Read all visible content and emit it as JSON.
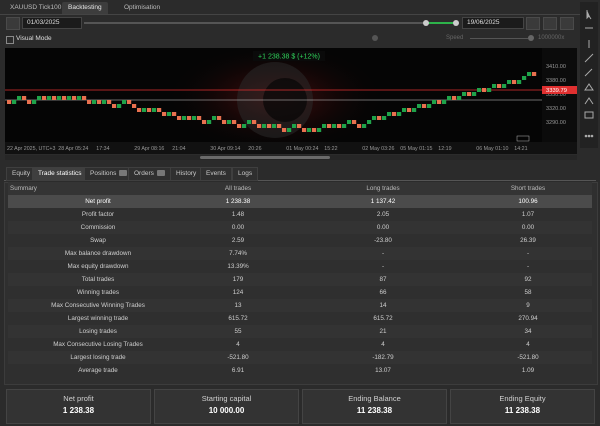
{
  "header": {
    "symbol": "XAUUSD",
    "timeframe": "Tick100",
    "tabs": [
      "Backtesting",
      "Optimisation"
    ],
    "start_date": "01/03/2025",
    "end_date": "19/06/2025"
  },
  "visual_mode": {
    "label": "Visual Mode",
    "speed_label": "Speed",
    "speed": "1000000x"
  },
  "chart": {
    "annotation": "+1 238.38 $ (+12%)",
    "price_labels": [
      "3410.00",
      "3380.00",
      "3350.00",
      "3320.00",
      "3290.00"
    ],
    "current_price": "3339.79",
    "time_labels": [
      "22 Apr 2025, UTC+3",
      "28 Apr 05:24",
      "17:34",
      "29 Apr 08:16",
      "21:04",
      "30 Apr 09:14",
      "20:26",
      "01 May 00:24",
      "15:22",
      "02 May 03:26",
      "05 May 01:15",
      "12:19",
      "06 May 01:10",
      "14:21"
    ]
  },
  "tabs": [
    "Equity",
    "Trade statistics",
    "Positions",
    "Orders",
    "History",
    "Events",
    "Logs"
  ],
  "table": {
    "columns": [
      "Summary",
      "All trades",
      "Long trades",
      "Short trades"
    ],
    "rows": [
      [
        "Net profit",
        "1 238.38",
        "1 137.42",
        "100.96"
      ],
      [
        "Profit factor",
        "1.48",
        "2.05",
        "1.07"
      ],
      [
        "Commission",
        "0.00",
        "0.00",
        "0.00"
      ],
      [
        "Swap",
        "2.59",
        "-23.80",
        "26.39"
      ],
      [
        "Max balance drawdown",
        "7.74%",
        "-",
        "-"
      ],
      [
        "Max equity drawdown",
        "13.39%",
        "-",
        "-"
      ],
      [
        "Total trades",
        "179",
        "87",
        "92"
      ],
      [
        "Winning trades",
        "124",
        "66",
        "58"
      ],
      [
        "Max Consecutive Winning Trades",
        "13",
        "14",
        "9"
      ],
      [
        "Largest winning trade",
        "615.72",
        "615.72",
        "270.94"
      ],
      [
        "Losing trades",
        "55",
        "21",
        "34"
      ],
      [
        "Max Consecutive Losing Trades",
        "4",
        "4",
        "4"
      ],
      [
        "Largest losing trade",
        "-521.80",
        "-182.79",
        "-521.80"
      ],
      [
        "Average trade",
        "6.91",
        "13.07",
        "1.09"
      ]
    ]
  },
  "summary": [
    {
      "label": "Net profit",
      "value": "1 238.38"
    },
    {
      "label": "Starting capital",
      "value": "10 000.00"
    },
    {
      "label": "Ending Balance",
      "value": "11 238.38"
    },
    {
      "label": "Ending Equity",
      "value": "11 238.38"
    }
  ]
}
